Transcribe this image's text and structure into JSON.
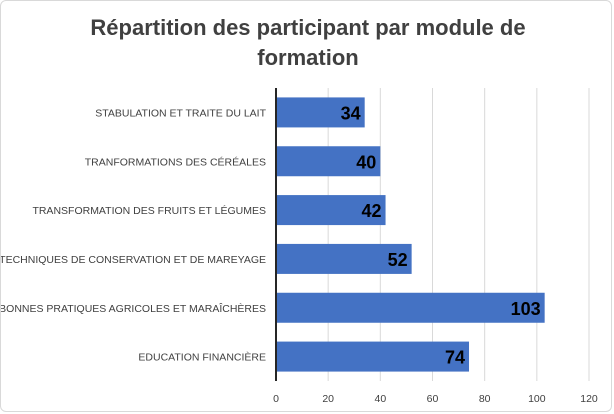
{
  "chart_data": {
    "type": "bar",
    "orientation": "horizontal",
    "title": "Répartition des participant par module de formation",
    "categories": [
      "STABULATION ET TRAITE DU LAIT",
      "TRANFORMATIONS DES CÉRÉALES",
      "TRANSFORMATION DES FRUITS ET LÉGUMES",
      "TECHNIQUES DE CONSERVATION ET DE MAREYAGE",
      "BONNES PRATIQUES AGRICOLES ET MARAÎCHÈRES",
      "EDUCATION FINANCIÈRE"
    ],
    "values": [
      34,
      40,
      42,
      52,
      103,
      74
    ],
    "data_labels": [
      "34",
      "40",
      "42",
      "52",
      "103",
      "74"
    ],
    "xlim": [
      0,
      120
    ],
    "x_ticks": [
      "0",
      "20",
      "40",
      "60",
      "80",
      "100",
      "120"
    ],
    "x_tick_values": [
      0,
      20,
      40,
      60,
      80,
      100,
      120
    ],
    "xlabel": "",
    "ylabel": "",
    "grid": true,
    "legend": "none",
    "bar_color": "#4472C4"
  }
}
